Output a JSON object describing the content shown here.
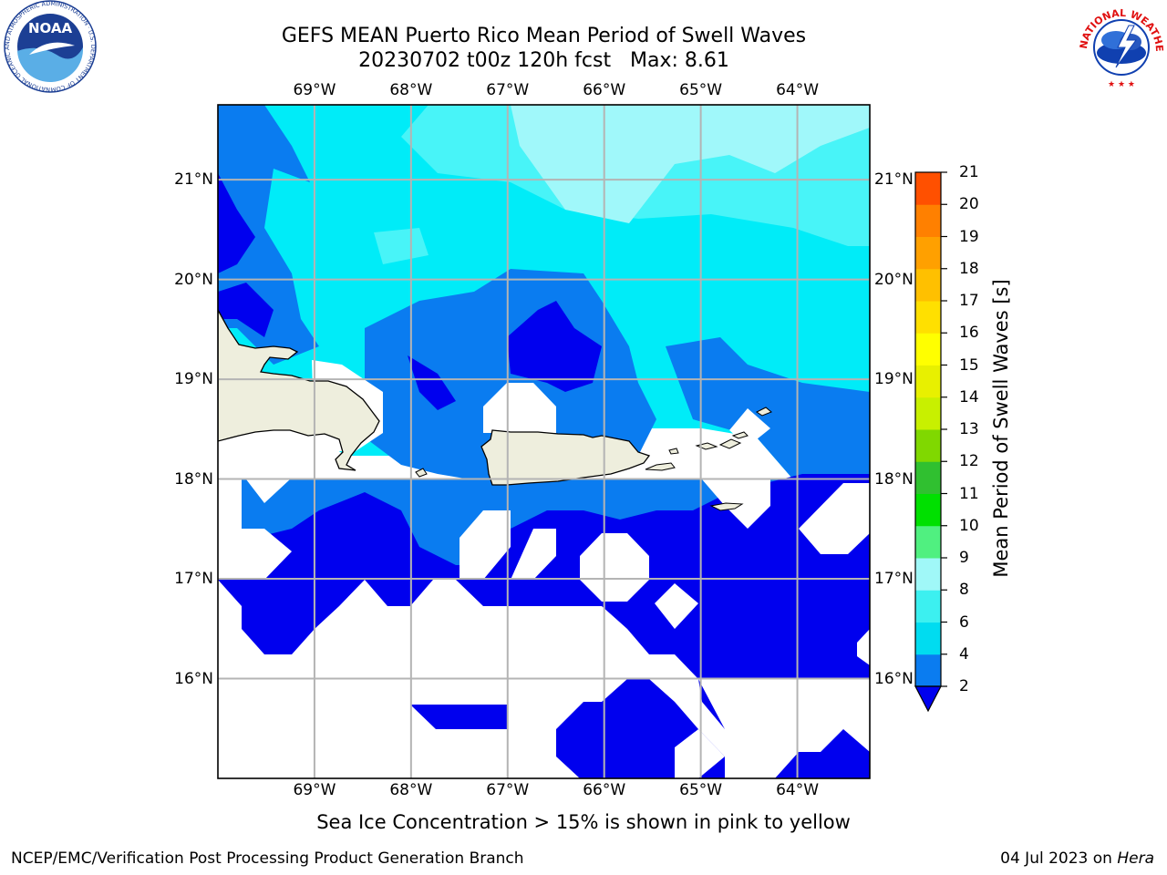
{
  "header": {
    "title_line1": "GEFS MEAN Puerto Rico Mean Period of Swell Waves",
    "title_line2": "20230702 t00z 120h fcst   Max: 8.61"
  },
  "logos": {
    "noaa_text": "NOAA",
    "noaa_ring_text": "NATIONAL OCEANIC AND ATMOSPHERIC ADMINISTRATION · U.S. DEPARTMENT OF COMMERCE",
    "nws_ring_text": "NATIONAL WEATHER SERVICE"
  },
  "map": {
    "lon_ticks": [
      "69°W",
      "68°W",
      "67°W",
      "66°W",
      "65°W",
      "64°W"
    ],
    "lat_ticks": [
      "21°N",
      "20°N",
      "19°N",
      "18°N",
      "17°N",
      "16°N"
    ],
    "lon_range": [
      -70.0,
      -63.25
    ],
    "lat_range": [
      15.0,
      21.75
    ]
  },
  "colorbar": {
    "label": "Mean Period of Swell Waves [s]",
    "ticks": [
      "2",
      "4",
      "6",
      "8",
      "9",
      "10",
      "11",
      "12",
      "13",
      "14",
      "15",
      "16",
      "17",
      "18",
      "19",
      "20",
      "21"
    ],
    "colors": [
      "#0a7cf0",
      "#00dcf0",
      "#3cf0f0",
      "#a0f8f8",
      "#50f080",
      "#00e000",
      "#30c030",
      "#80d800",
      "#c8f000",
      "#e8f000",
      "#ffff00",
      "#ffe000",
      "#ffc000",
      "#ffa000",
      "#ff8000",
      "#ff5000",
      "#ff2000",
      "#ff0000"
    ],
    "under_color": "#0000ee"
  },
  "colors": {
    "lt2": "#0000ee",
    "c2_4": "#0a7cf0",
    "c4_6": "#00ecf8",
    "c6_8": "#48f4f8",
    "c8_9": "#a0f8fa",
    "land": "#eeeedd",
    "grid": "#b4b4b4"
  },
  "note": "Sea Ice Concentration > 15% is shown in pink to yellow",
  "footer": {
    "left": "NCEP/EMC/Verification Post Processing Product Generation Branch",
    "date": "04 Jul 2023 on",
    "machine": "Hera"
  }
}
